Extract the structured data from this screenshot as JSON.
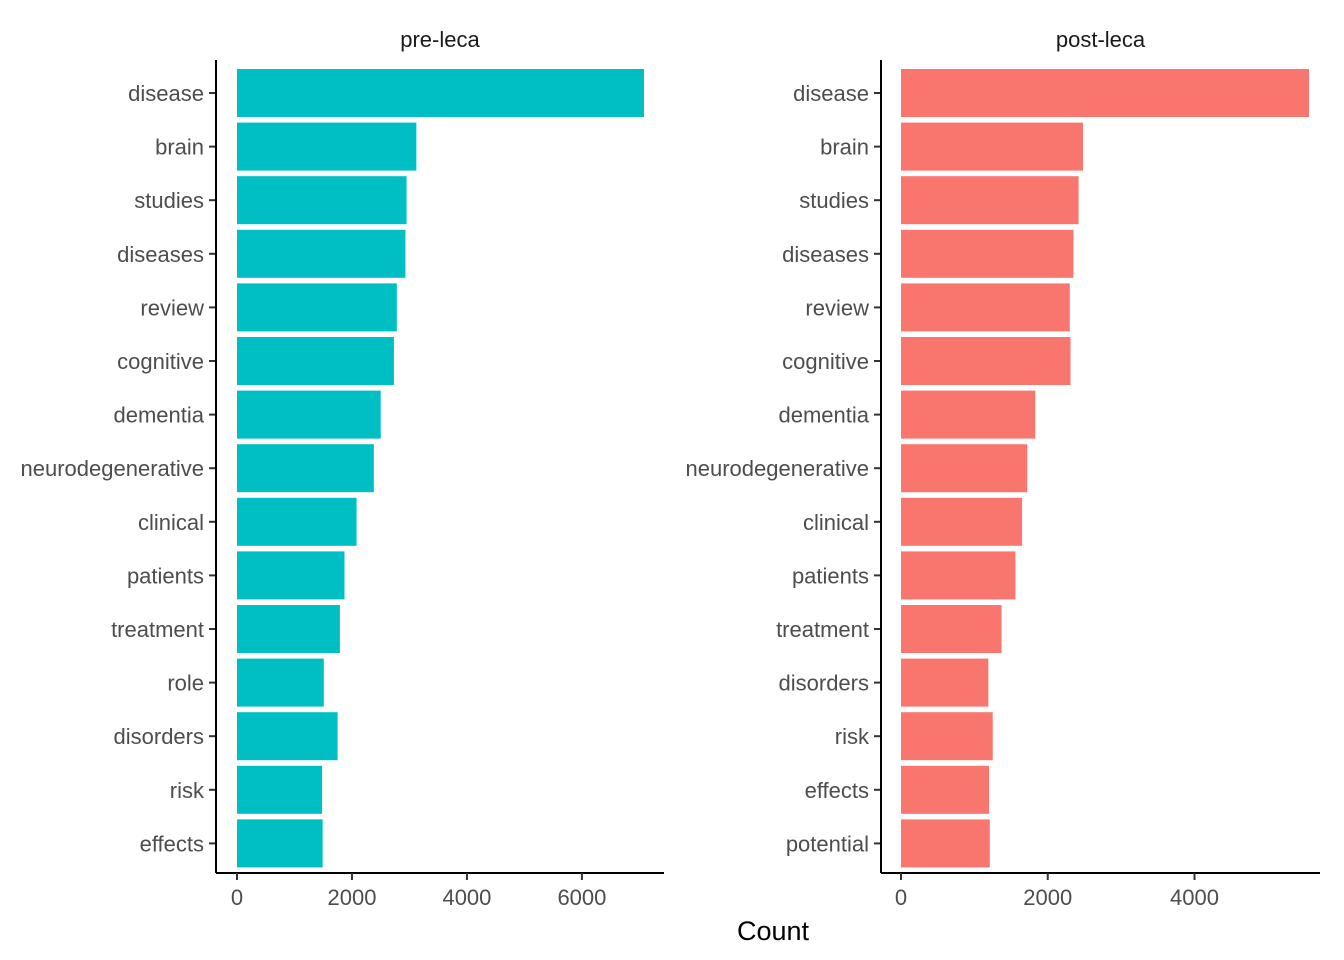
{
  "chart_data": {
    "type": "bar",
    "orientation": "horizontal",
    "xlabel": "Count",
    "ylabel": "",
    "grid": false,
    "panels": [
      {
        "name": "pre-leca",
        "color": "#00BFC4",
        "xlim": [
          0,
          7400
        ],
        "xticks": [
          0,
          2000,
          4000,
          6000
        ],
        "categories": [
          "disease",
          "brain",
          "studies",
          "diseases",
          "review",
          "cognitive",
          "dementia",
          "neurodegenerative",
          "clinical",
          "patients",
          "treatment",
          "role",
          "disorders",
          "risk",
          "effects"
        ],
        "values": [
          7080,
          3120,
          2950,
          2930,
          2780,
          2730,
          2500,
          2380,
          2080,
          1870,
          1790,
          1510,
          1750,
          1480,
          1490
        ]
      },
      {
        "name": "post-leca",
        "color": "#F8766D",
        "xlim": [
          0,
          5550
        ],
        "xticks": [
          0,
          2000,
          4000
        ],
        "categories": [
          "disease",
          "brain",
          "studies",
          "diseases",
          "review",
          "cognitive",
          "dementia",
          "neurodegenerative",
          "clinical",
          "patients",
          "treatment",
          "disorders",
          "risk",
          "effects",
          "potential"
        ],
        "values": [
          5560,
          2480,
          2420,
          2350,
          2300,
          2310,
          1830,
          1720,
          1650,
          1560,
          1370,
          1190,
          1250,
          1200,
          1210
        ]
      }
    ]
  }
}
